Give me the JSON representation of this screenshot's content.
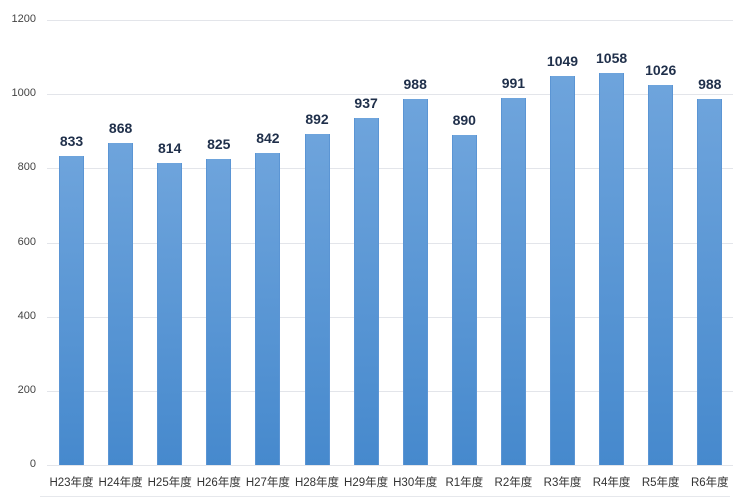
{
  "chart_data": {
    "type": "bar",
    "title": "",
    "xlabel": "",
    "ylabel": "",
    "categories": [
      "H23年度",
      "H24年度",
      "H25年度",
      "H26年度",
      "H27年度",
      "H28年度",
      "H29年度",
      "H30年度",
      "R1年度",
      "R2年度",
      "R3年度",
      "R4年度",
      "R5年度",
      "R6年度"
    ],
    "values": [
      833,
      868,
      814,
      825,
      842,
      892,
      937,
      988,
      890,
      991,
      1049,
      1058,
      1026,
      988
    ],
    "ylim": [
      0,
      1200
    ],
    "yticks": [
      0,
      200,
      400,
      600,
      800,
      1000,
      1200
    ],
    "grid": true,
    "legend": null,
    "data_labels": true,
    "bar_color": "#5b95d4",
    "label_color": "#1f2f4a"
  }
}
